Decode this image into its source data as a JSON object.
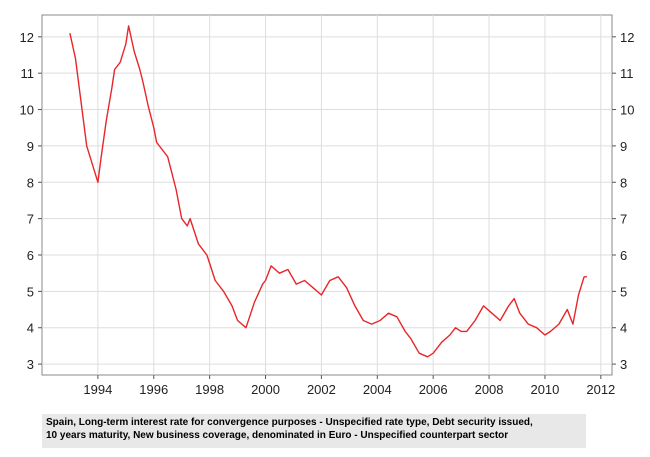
{
  "chart_data": {
    "type": "line",
    "title": "",
    "xlabel": "",
    "ylabel": "",
    "xlim": [
      1992.0,
      2012.4
    ],
    "ylim": [
      2.7,
      12.6
    ],
    "x_ticks": [
      1994,
      1996,
      1998,
      2000,
      2002,
      2004,
      2006,
      2008,
      2010,
      2012
    ],
    "y_ticks": [
      3,
      4,
      5,
      6,
      7,
      8,
      9,
      10,
      11,
      12
    ],
    "grid": true,
    "legend": "none",
    "series": [
      {
        "color": "#e8262a",
        "x": [
          1993.0,
          1993.2,
          1993.4,
          1993.6,
          1993.8,
          1994.0,
          1994.1,
          1994.3,
          1994.5,
          1994.6,
          1994.8,
          1995.0,
          1995.1,
          1995.3,
          1995.5,
          1995.6,
          1995.8,
          1996.0,
          1996.1,
          1996.3,
          1996.5,
          1996.6,
          1996.8,
          1997.0,
          1997.2,
          1997.3,
          1997.6,
          1997.9,
          1998.2,
          1998.5,
          1998.8,
          1999.0,
          1999.3,
          1999.6,
          1999.9,
          2000.0,
          2000.2,
          2000.5,
          2000.8,
          2001.1,
          2001.4,
          2001.7,
          2002.0,
          2002.3,
          2002.6,
          2002.9,
          2003.2,
          2003.5,
          2003.8,
          2004.1,
          2004.4,
          2004.7,
          2005.0,
          2005.2,
          2005.5,
          2005.8,
          2006.0,
          2006.3,
          2006.6,
          2006.8,
          2007.0,
          2007.2,
          2007.5,
          2007.8,
          2008.1,
          2008.4,
          2008.7,
          2008.9,
          2009.1,
          2009.4,
          2009.7,
          2010.0,
          2010.2,
          2010.5,
          2010.8,
          2011.0,
          2011.2,
          2011.4,
          2011.5
        ],
        "y": [
          12.1,
          11.4,
          10.2,
          9.0,
          8.5,
          8.0,
          8.6,
          9.7,
          10.6,
          11.1,
          11.3,
          11.8,
          12.3,
          11.6,
          11.1,
          10.8,
          10.1,
          9.5,
          9.1,
          8.9,
          8.7,
          8.4,
          7.8,
          7.0,
          6.8,
          7.0,
          6.3,
          6.0,
          5.3,
          5.0,
          4.6,
          4.2,
          4.0,
          4.7,
          5.2,
          5.3,
          5.7,
          5.5,
          5.6,
          5.2,
          5.3,
          5.1,
          4.9,
          5.3,
          5.4,
          5.1,
          4.6,
          4.2,
          4.1,
          4.2,
          4.4,
          4.3,
          3.9,
          3.7,
          3.3,
          3.2,
          3.3,
          3.6,
          3.8,
          4.0,
          3.9,
          3.9,
          4.2,
          4.6,
          4.4,
          4.2,
          4.6,
          4.8,
          4.4,
          4.1,
          4.0,
          3.8,
          3.9,
          4.1,
          4.5,
          4.1,
          4.9,
          5.4,
          5.4
        ]
      }
    ]
  },
  "caption": {
    "line1": "Spain, Long-term interest rate for convergence purposes - Unspecified rate type, Debt security issued,",
    "line2": "10 years maturity, New business coverage, denominated in Euro - Unspecified counterpart sector"
  }
}
